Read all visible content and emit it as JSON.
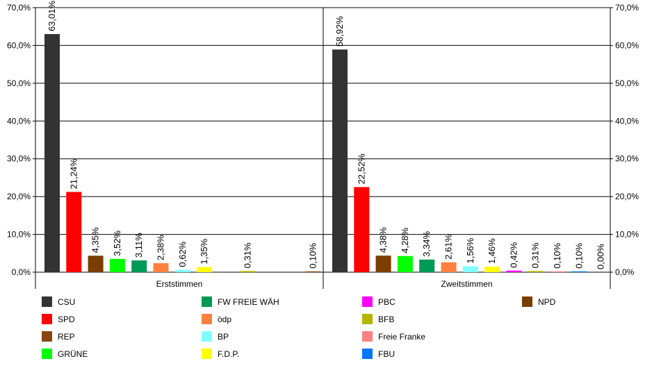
{
  "chart_data": {
    "type": "bar",
    "ylim": [
      0,
      70
    ],
    "y_ticks": [
      "0,0%",
      "10,0%",
      "20,0%",
      "30,0%",
      "40,0%",
      "50,0%",
      "60,0%",
      "70,0%"
    ],
    "grid": true,
    "legend_position": "bottom",
    "groups": [
      {
        "name": "Erststimmen",
        "bars": [
          {
            "party": "CSU",
            "value": 63.01,
            "label": "63,01%"
          },
          {
            "party": "SPD",
            "value": 21.24,
            "label": "21,24%"
          },
          {
            "party": "NPD",
            "value": 4.35,
            "label": "4,35%"
          },
          {
            "party": "GRÜNE",
            "value": 3.52,
            "label": "3,52%"
          },
          {
            "party": "FW FREIE WÄH",
            "value": 3.11,
            "label": "3,11%"
          },
          {
            "party": "ödp",
            "value": 2.38,
            "label": "2,38%"
          },
          {
            "party": "BP",
            "value": 0.62,
            "label": "0,62%"
          },
          {
            "party": "F.D.P.",
            "value": 1.35,
            "label": "1,35%"
          },
          {
            "party": "BFB",
            "value": 0.31,
            "label": "0,31%"
          },
          {
            "party": "REP",
            "value": 0.1,
            "label": "0,10%"
          }
        ]
      },
      {
        "name": "Zweitstimmen",
        "bars": [
          {
            "party": "CSU",
            "value": 58.92,
            "label": "58,92%"
          },
          {
            "party": "SPD",
            "value": 22.52,
            "label": "22,52%"
          },
          {
            "party": "NPD",
            "value": 4.38,
            "label": "4,38%"
          },
          {
            "party": "GRÜNE",
            "value": 4.28,
            "label": "4,28%"
          },
          {
            "party": "FW FREIE WÄH",
            "value": 3.34,
            "label": "3,34%"
          },
          {
            "party": "ödp",
            "value": 2.61,
            "label": "2,61%"
          },
          {
            "party": "BP",
            "value": 1.56,
            "label": "1,56%"
          },
          {
            "party": "F.D.P.",
            "value": 1.46,
            "label": "1,46%"
          },
          {
            "party": "PBC",
            "value": 0.42,
            "label": "0,42%"
          },
          {
            "party": "BFB",
            "value": 0.31,
            "label": "0,31%"
          },
          {
            "party": "Freie Franke",
            "value": 0.1,
            "label": "0,10%"
          },
          {
            "party": "FBU",
            "value": 0.1,
            "label": "0,10%"
          },
          {
            "party": "REP",
            "value": 0.0,
            "label": "0,00%"
          }
        ]
      }
    ],
    "legend": [
      {
        "name": "CSU",
        "color": "#333333"
      },
      {
        "name": "SPD",
        "color": "#ff0000"
      },
      {
        "name": "REP",
        "color": "#8b4513"
      },
      {
        "name": "GRÜNE",
        "color": "#00ff00"
      },
      {
        "name": "FW FREIE WÄH",
        "color": "#009955"
      },
      {
        "name": "ödp",
        "color": "#ff8040"
      },
      {
        "name": "BP",
        "color": "#80ffff"
      },
      {
        "name": "F.D.P.",
        "color": "#ffff00"
      },
      {
        "name": "PBC",
        "color": "#ff00ff"
      },
      {
        "name": "BFB",
        "color": "#b5b500"
      },
      {
        "name": "Freie Franke",
        "color": "#ff8080"
      },
      {
        "name": "FBU",
        "color": "#0077ff"
      },
      {
        "name": "NPD",
        "color": "#7a3e00"
      }
    ]
  }
}
